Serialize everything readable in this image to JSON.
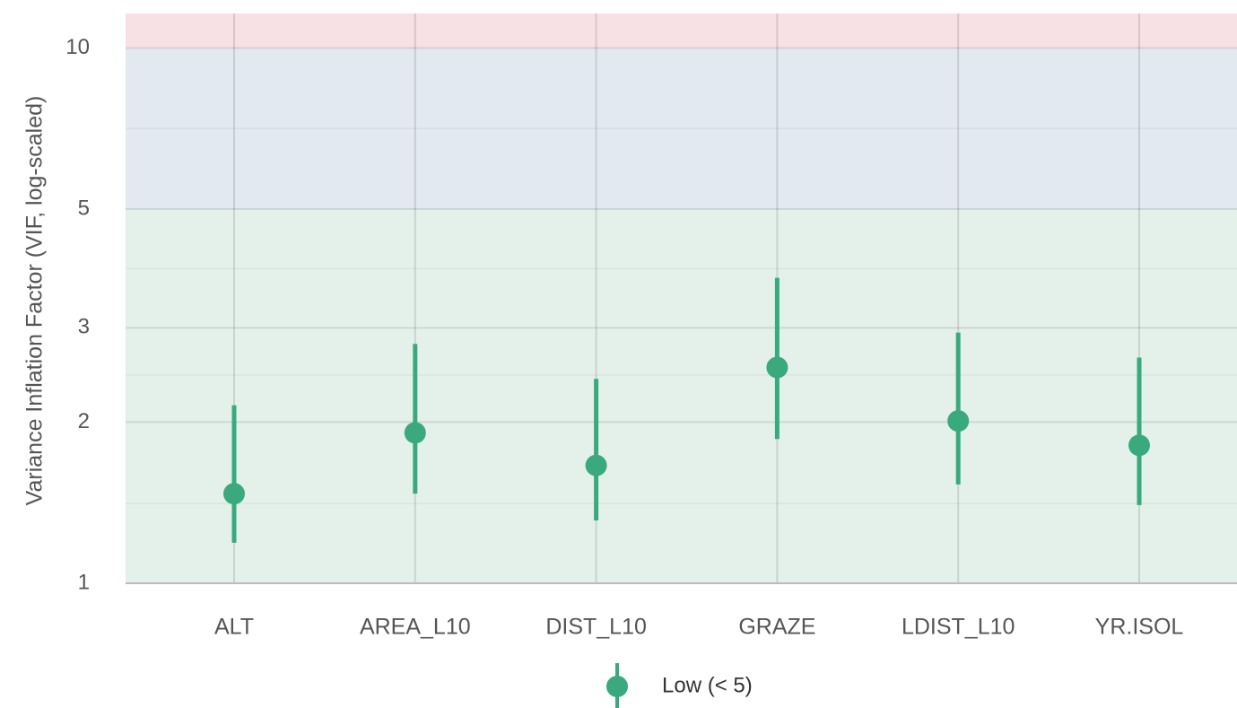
{
  "chart_data": {
    "type": "pointrange",
    "y_label": "Variance Inflation Factor (VIF, log-scaled)",
    "y_log": true,
    "ylim": [
      1,
      11.6
    ],
    "yticks": [
      1,
      2,
      3,
      5,
      10
    ],
    "minor_yticks": [
      1.41,
      2.45,
      3.87,
      7.07
    ],
    "grid": true,
    "bands": [
      {
        "range": [
          1,
          5
        ],
        "color": "#e4f1eb"
      },
      {
        "range": [
          5,
          10
        ],
        "color": "#e3e9f1"
      },
      {
        "range": [
          10,
          11.6
        ],
        "color": "#f7e1e4"
      }
    ],
    "categories": [
      "ALT",
      "AREA_L10",
      "DIST_L10",
      "GRAZE",
      "LDIST_L10",
      "YR.ISOL"
    ],
    "legend_position": "bottom",
    "series": [
      {
        "name": "Low (< 5)",
        "color": "#3aaa7e",
        "values": [
          1.47,
          1.91,
          1.66,
          2.53,
          2.01,
          1.81
        ],
        "lower": [
          1.19,
          1.47,
          1.31,
          1.86,
          1.53,
          1.4
        ],
        "upper": [
          2.15,
          2.8,
          2.41,
          3.72,
          2.94,
          2.64
        ]
      }
    ]
  }
}
